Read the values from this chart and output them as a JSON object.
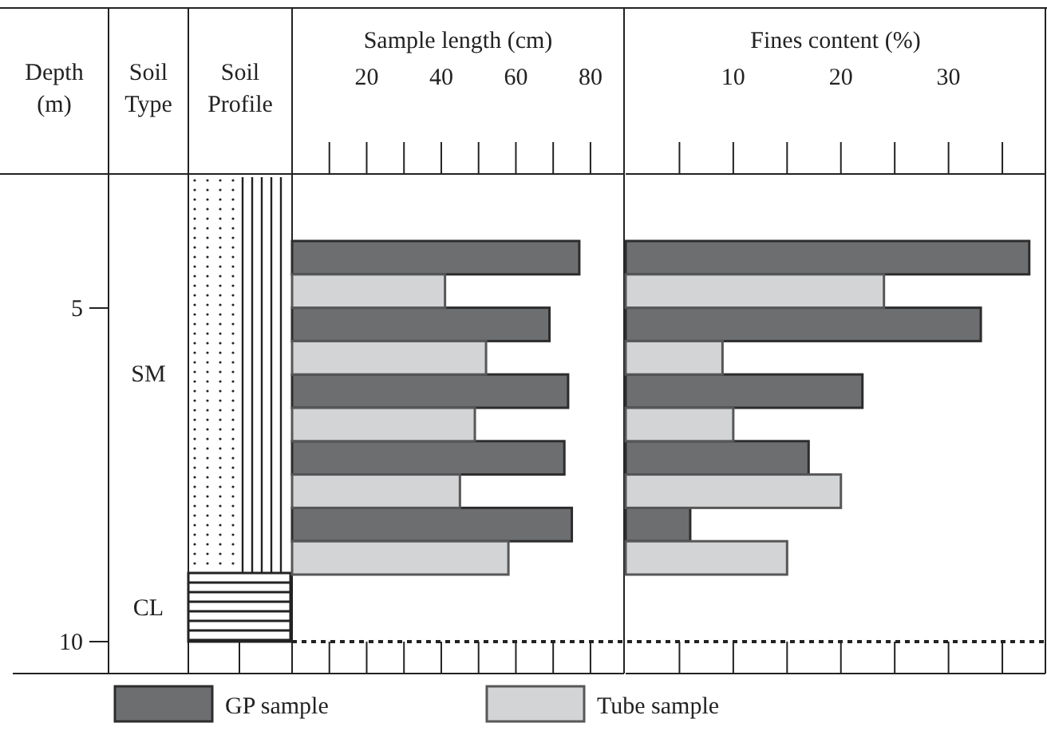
{
  "chart_data": [
    {
      "type": "other",
      "ylabel": "Depth (m)",
      "annotations": [
        "Soil Type",
        "Soil Profile",
        "5",
        "10",
        "SM",
        "CL"
      ]
    },
    {
      "type": "bar",
      "orientation": "horizontal",
      "xlabel": "Sample length (cm)",
      "categories": [
        null,
        null,
        null,
        null,
        null
      ],
      "series": [
        {
          "name": "GP sample",
          "color": "#6d6e70",
          "values": [
            77,
            69,
            74,
            73,
            75
          ]
        },
        {
          "name": "Tube sample",
          "color": "#d3d4d6",
          "values": [
            41,
            52,
            49,
            45,
            58
          ]
        }
      ],
      "xlim": [
        0,
        89
      ],
      "xticks": [
        20,
        40,
        60,
        80
      ],
      "legend": "bottom"
    },
    {
      "type": "bar",
      "orientation": "horizontal",
      "xlabel": "Fines content (%)",
      "categories": [
        null,
        null,
        null,
        null,
        null
      ],
      "series": [
        {
          "name": "GP sample",
          "color": "#6d6e70",
          "values": [
            37.5,
            33,
            22,
            17,
            6
          ]
        },
        {
          "name": "Tube sample",
          "color": "#d3d4d6",
          "values": [
            24,
            9,
            10,
            20,
            15
          ]
        }
      ],
      "xlim": [
        0,
        39
      ],
      "xticks": [
        10,
        20,
        30
      ],
      "legend": "bottom"
    }
  ]
}
